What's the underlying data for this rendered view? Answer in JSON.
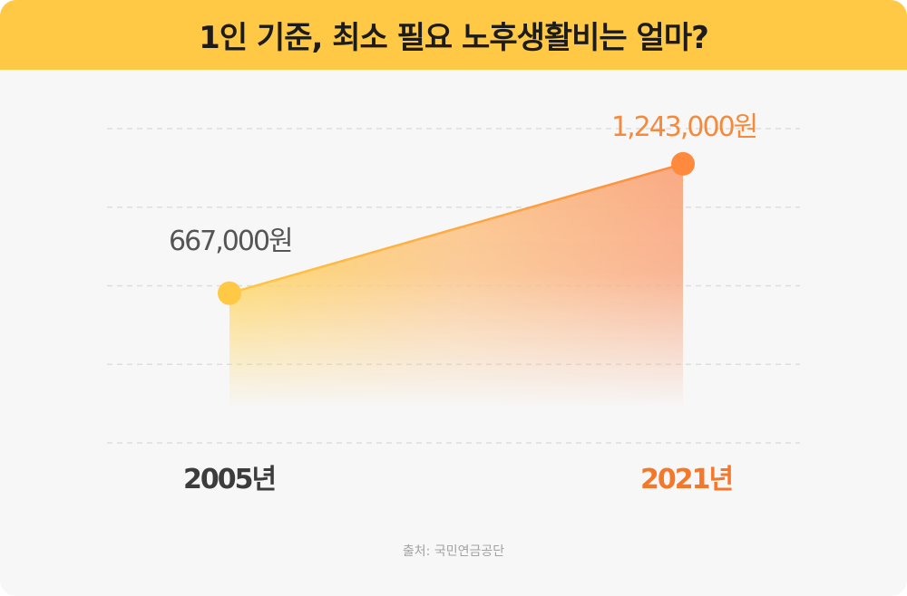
{
  "header": {
    "title": "1인 기준, 최소 필요 노후생활비는 얼마?"
  },
  "chart_data": {
    "type": "area",
    "title": "1인 기준, 최소 필요 노후생활비는 얼마?",
    "x": [
      "2005년",
      "2021년"
    ],
    "values": [
      667000,
      1243000
    ],
    "data_labels": [
      "667,000원",
      "1,243,000원"
    ],
    "unit": "원",
    "ylim": [
      0,
      1400000
    ],
    "grid": true,
    "colors": {
      "start": "#ffc845",
      "end": "#ff8a3d"
    }
  },
  "footer": {
    "source": "출처: 국민연금공단"
  }
}
